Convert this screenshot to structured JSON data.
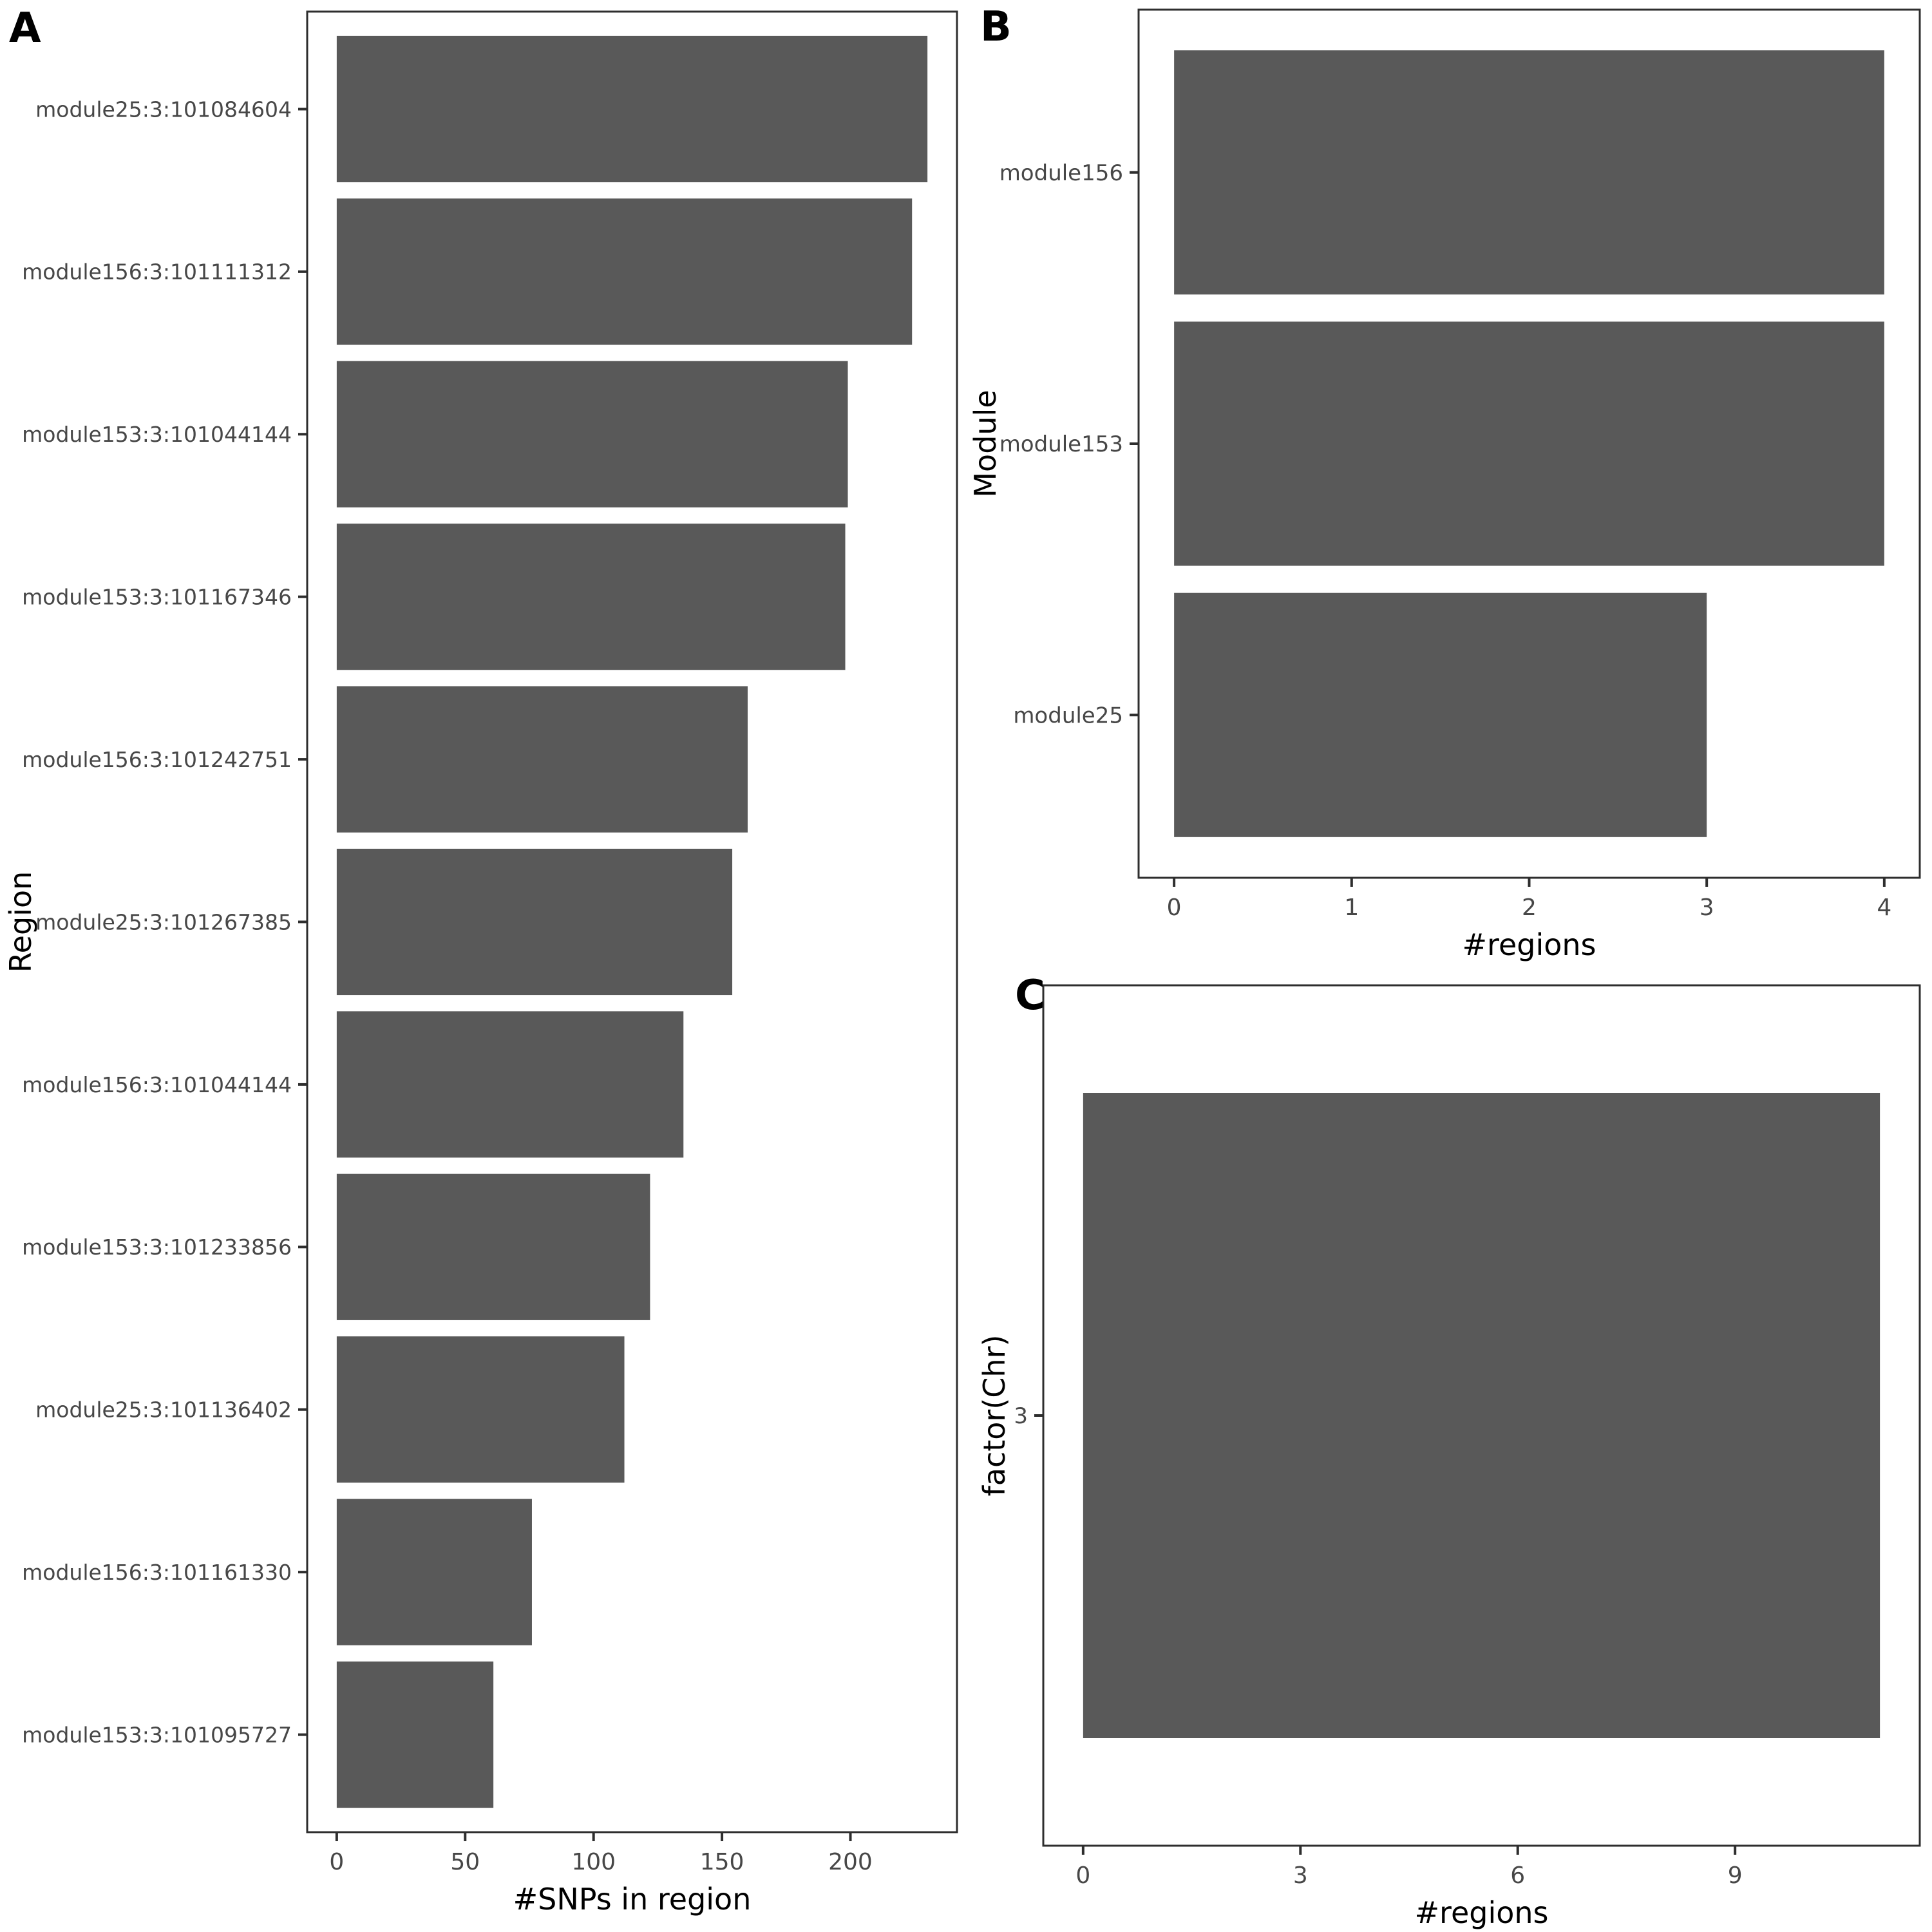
{
  "figure": {
    "background": "#ffffff",
    "panel_letters": [
      "A",
      "B",
      "C"
    ]
  },
  "colors": {
    "bar_fill": "#595959",
    "panel_border": "#2e2e2e",
    "tick_mark": "#2e2e2e",
    "tick_label": "#474747",
    "axis_title": "#000000",
    "background": "#ffffff"
  },
  "chart_data": [
    {
      "id": "A",
      "panel_label": "A",
      "type": "bar",
      "orientation": "horizontal",
      "title": "",
      "xlabel": "#SNPs in region",
      "ylabel": "Region",
      "categories_order": "top-to-bottom",
      "categories": [
        "module25:3:101084604",
        "module156:3:101111312",
        "module153:3:101044144",
        "module153:3:101167346",
        "module156:3:101242751",
        "module25:3:101267385",
        "module156:3:101044144",
        "module153:3:101233856",
        "module25:3:101136402",
        "module156:3:101161330",
        "module153:3:101095727"
      ],
      "values": [
        230,
        224,
        199,
        198,
        160,
        154,
        135,
        122,
        112,
        76,
        61
      ],
      "xticks": [
        0,
        50,
        100,
        150,
        200
      ],
      "xlim": [
        -11.5,
        241.5
      ],
      "grid": false,
      "legend": false,
      "bar_color": "#595959"
    },
    {
      "id": "B",
      "panel_label": "B",
      "type": "bar",
      "orientation": "horizontal",
      "title": "",
      "xlabel": "#regions",
      "ylabel": "Module",
      "categories_order": "top-to-bottom",
      "categories": [
        "module156",
        "module153",
        "module25"
      ],
      "values": [
        4,
        4,
        3
      ],
      "xticks": [
        0,
        1,
        2,
        3,
        4
      ],
      "xlim": [
        -0.2,
        4.2
      ],
      "grid": false,
      "legend": false,
      "bar_color": "#595959"
    },
    {
      "id": "C",
      "panel_label": "C",
      "type": "bar",
      "orientation": "horizontal",
      "title": "",
      "xlabel": "#regions",
      "ylabel": "factor(Chr)",
      "categories_order": "top-to-bottom",
      "categories": [
        "3"
      ],
      "values": [
        11
      ],
      "xticks": [
        0,
        3,
        6,
        9
      ],
      "xlim": [
        -0.55,
        11.55
      ],
      "grid": false,
      "legend": false,
      "bar_color": "#595959"
    }
  ]
}
